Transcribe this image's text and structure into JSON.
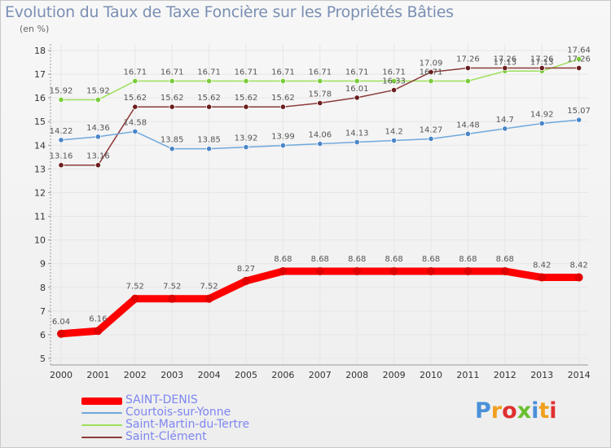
{
  "header": {
    "title": "Evolution du Taux de Taxe Foncière sur les Propriétés Bâties",
    "subtitle": "(en %)"
  },
  "logo": {
    "text": "Proxiti",
    "letters": [
      "P",
      "r",
      "o",
      "x",
      "i",
      "t",
      "i"
    ],
    "letter_colors": [
      "#4a90d9",
      "#f0a020",
      "#e03030",
      "#6bbf30",
      "#4a90d9",
      "#f0a020",
      "#e03030"
    ]
  },
  "chart_data": {
    "type": "line",
    "title": "Evolution du Taux de Taxe Foncière sur les Propriétés Bâties",
    "ylabel": "(en %)",
    "xlabel": "",
    "ylim": [
      5,
      18
    ],
    "yticks": [
      5,
      6,
      7,
      8,
      9,
      10,
      11,
      12,
      13,
      14,
      15,
      16,
      17,
      18
    ],
    "x": [
      "2000",
      "2001",
      "2002",
      "2003",
      "2004",
      "2005",
      "2006",
      "2007",
      "2008",
      "2009",
      "2010",
      "2011",
      "2012",
      "2013",
      "2014"
    ],
    "grid": true,
    "legend_position": "bottom",
    "series": [
      {
        "name": "Saint-Martin-du-Tertre",
        "color": "#9de05a",
        "marker": "#7acc3a",
        "thick": false,
        "values": [
          15.92,
          15.92,
          16.71,
          16.71,
          16.71,
          16.71,
          16.71,
          16.71,
          16.71,
          16.71,
          16.71,
          16.71,
          17.13,
          17.13,
          17.64
        ],
        "labels": [
          "15.92",
          "15.92",
          "16.71",
          "16.71",
          "16.71",
          "16.71",
          "16.71",
          "16.71",
          "16.71",
          "16.71",
          "16.71",
          "",
          "17.13",
          "17.13",
          "17.64"
        ]
      },
      {
        "name": "Saint-Clément",
        "color": "#8c3a3a",
        "marker": "#6b1e1e",
        "thick": false,
        "values": [
          13.16,
          13.16,
          15.62,
          15.62,
          15.62,
          15.62,
          15.62,
          15.78,
          16.01,
          16.33,
          17.09,
          17.26,
          17.26,
          17.26,
          17.26
        ],
        "labels": [
          "13.16",
          "13.16",
          "15.62",
          "15.62",
          "15.62",
          "15.62",
          "15.62",
          "15.78",
          "16.01",
          "16.33",
          "17.09",
          "17.26",
          "17.26",
          "17.26",
          "17.26"
        ]
      },
      {
        "name": "Courtois-sur-Yonne",
        "color": "#6fa8dc",
        "marker": "#4a86c8",
        "thick": false,
        "values": [
          14.22,
          14.36,
          14.58,
          13.85,
          13.85,
          13.92,
          13.99,
          14.06,
          14.13,
          14.2,
          14.27,
          14.48,
          14.7,
          14.92,
          15.07
        ],
        "labels": [
          "14.22",
          "14.36",
          "14.58",
          "13.85",
          "13.85",
          "13.92",
          "13.99",
          "14.06",
          "14.13",
          "14.2",
          "14.27",
          "14.48",
          "14.7",
          "14.92",
          "15.07"
        ]
      },
      {
        "name": "SAINT-DENIS",
        "color": "#ff0000",
        "marker": "#e00000",
        "thick": true,
        "values": [
          6.04,
          6.16,
          7.52,
          7.52,
          7.52,
          8.27,
          8.68,
          8.68,
          8.68,
          8.68,
          8.68,
          8.68,
          8.68,
          8.42,
          8.42
        ],
        "labels": [
          "6.04",
          "6.16",
          "7.52",
          "7.52",
          "7.52",
          "8.27",
          "8.68",
          "8.68",
          "8.68",
          "8.68",
          "8.68",
          "8.68",
          "8.68",
          "8.42",
          "8.42"
        ]
      }
    ],
    "legend": [
      "SAINT-DENIS",
      "Courtois-sur-Yonne",
      "Saint-Martin-du-Tertre",
      "Saint-Clément"
    ]
  }
}
